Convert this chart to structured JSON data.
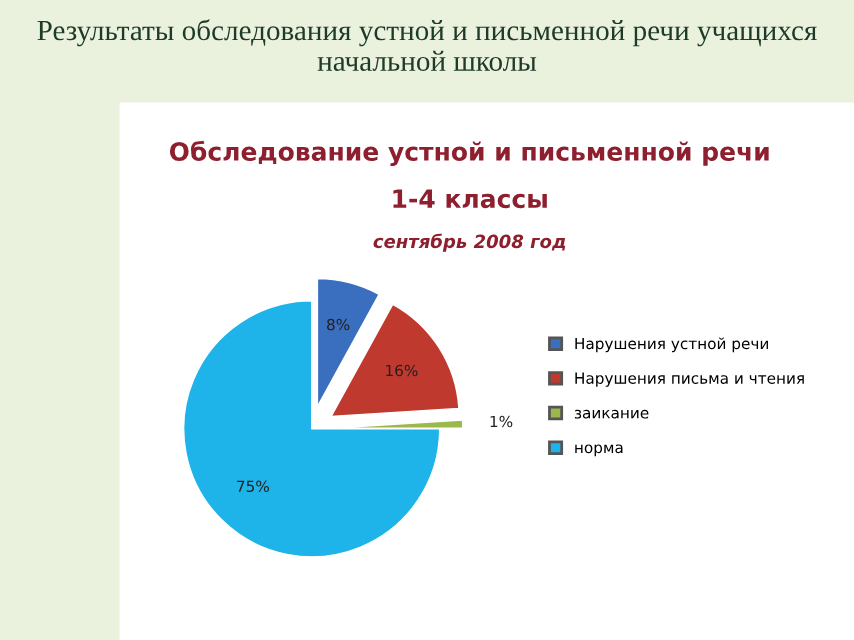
{
  "chart_data": {
    "type": "pie",
    "title": "Обследование устной и письменной речи",
    "subtitle": "1-4 классы",
    "annotations": [
      "Результаты обследования устной и письменной речи учащихся начальной школы",
      "сентябрь 2008 год"
    ],
    "categories": [
      "Нарушения устной речи",
      "Нарушения письма и чтения",
      "заикание",
      "норма"
    ],
    "values": [
      8,
      16,
      1,
      75
    ],
    "value_labels": [
      "8%",
      "16%",
      "1%",
      "75%"
    ],
    "colors": [
      "#3a6fc0",
      "#c0392f",
      "#9bb84a",
      "#1eb4ea"
    ],
    "legend": "right"
  }
}
